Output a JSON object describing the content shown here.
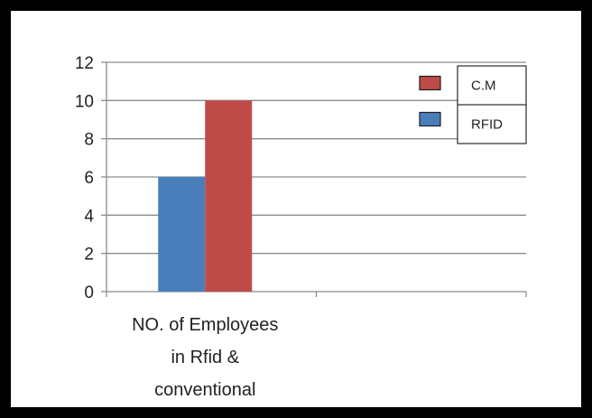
{
  "chart_data": {
    "type": "bar",
    "categories": [
      "NO. of Employees in Rfid & conventional",
      ""
    ],
    "category_label_lines": [
      [
        "NO. of Employees",
        "in Rfid &",
        "conventional"
      ],
      []
    ],
    "series": [
      {
        "name": "RFID",
        "values": [
          6,
          null
        ],
        "color": "#4a7ebb"
      },
      {
        "name": "C.M",
        "values": [
          10,
          null
        ],
        "color": "#be4b48"
      }
    ],
    "legend_order": [
      "C.M",
      "RFID"
    ],
    "ylim": [
      0,
      12
    ],
    "yticks": [
      0,
      2,
      4,
      6,
      8,
      10,
      12
    ],
    "grid": true,
    "legend_position": "top-right",
    "title": "",
    "xlabel": "",
    "ylabel": ""
  }
}
